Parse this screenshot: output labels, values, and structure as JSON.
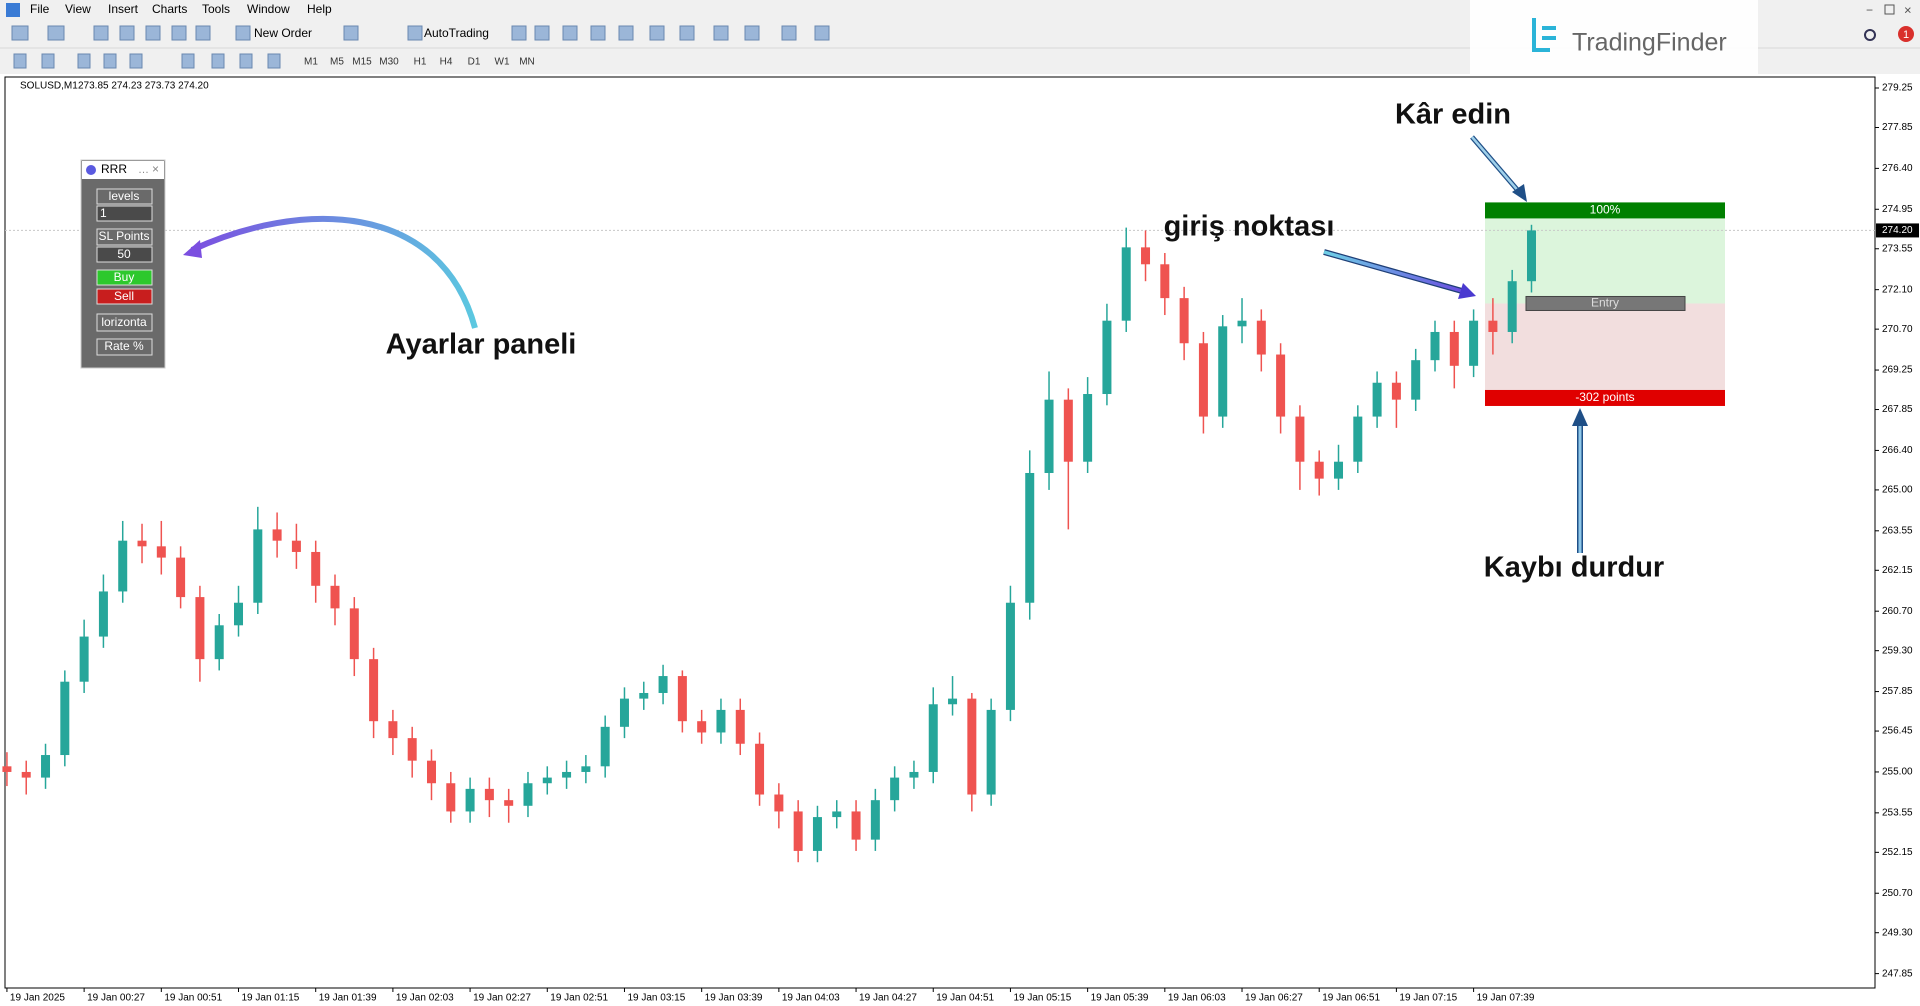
{
  "menu": [
    "File",
    "View",
    "Insert",
    "Charts",
    "Tools",
    "Window",
    "Help"
  ],
  "toolbar": {
    "new_order": "New Order",
    "autotrading": "AutoTrading"
  },
  "timeframes": [
    "M1",
    "M5",
    "M15",
    "M30",
    "H1",
    "H4",
    "D1",
    "W1",
    "MN"
  ],
  "logo": "TradingFinder",
  "notification": "1",
  "chart_data": {
    "type": "candlestick",
    "symbol": "SOLUSD,M1",
    "quote": "273.85 274.23 273.73 274.20",
    "up_color": "#26a69a",
    "down_color": "#ef5350",
    "open": [
      255.2,
      255.0,
      254.8,
      255.6,
      258.2,
      259.8,
      261.4,
      263.2,
      263.0,
      262.6,
      261.2,
      259.0,
      260.2,
      261.0,
      263.6,
      263.2,
      262.8,
      261.6,
      260.8,
      259.0,
      256.8,
      256.2,
      255.4,
      254.6,
      253.6,
      254.4,
      254.0,
      253.8,
      254.6,
      254.8,
      255.0,
      255.2,
      256.6,
      257.6,
      257.8,
      258.4,
      256.8,
      256.4,
      257.2,
      256.0,
      254.2,
      253.6,
      252.2,
      253.4,
      253.6,
      252.6,
      254.0,
      254.8,
      255.0,
      257.4,
      257.6,
      254.2,
      257.2,
      261.0,
      265.6,
      268.2,
      266.0,
      268.4,
      271.0,
      273.6,
      273.0,
      271.8,
      270.2,
      267.6,
      270.8,
      271.0,
      269.8,
      267.6,
      266.0,
      265.4,
      266.0,
      267.6,
      268.8,
      268.2,
      269.6,
      270.6,
      269.4,
      271.0,
      270.6,
      272.4
    ],
    "high": [
      255.7,
      255.4,
      256.0,
      258.6,
      260.4,
      262.0,
      263.9,
      263.8,
      263.9,
      263.0,
      261.6,
      260.6,
      261.6,
      264.4,
      264.2,
      263.8,
      263.2,
      262.0,
      261.2,
      259.4,
      257.2,
      256.6,
      255.8,
      255.0,
      254.8,
      254.8,
      254.4,
      255.0,
      255.2,
      255.4,
      255.6,
      257.0,
      258.0,
      258.2,
      258.8,
      258.6,
      257.2,
      257.6,
      257.6,
      256.4,
      254.6,
      254.0,
      253.8,
      254.0,
      254.0,
      254.4,
      255.2,
      255.4,
      258.0,
      258.4,
      257.8,
      257.6,
      261.6,
      266.4,
      269.2,
      268.6,
      269.0,
      271.6,
      274.3,
      274.2,
      273.4,
      272.2,
      270.6,
      271.2,
      271.8,
      271.4,
      270.2,
      268.0,
      266.4,
      266.6,
      268.0,
      269.2,
      269.2,
      270.0,
      271.0,
      271.0,
      271.4,
      271.8,
      272.8,
      274.4
    ],
    "low": [
      254.5,
      254.2,
      254.4,
      255.2,
      257.8,
      259.4,
      261.0,
      262.4,
      262.0,
      260.8,
      258.2,
      258.6,
      259.8,
      260.6,
      262.6,
      262.2,
      261.0,
      260.2,
      258.4,
      256.2,
      255.6,
      254.8,
      254.0,
      253.2,
      253.2,
      253.4,
      253.2,
      253.4,
      254.2,
      254.4,
      254.6,
      254.8,
      256.2,
      257.2,
      257.4,
      256.4,
      256.0,
      256.0,
      255.6,
      253.8,
      253.0,
      251.8,
      251.8,
      253.0,
      252.2,
      252.2,
      253.6,
      254.4,
      254.6,
      257.0,
      253.6,
      253.8,
      256.8,
      260.4,
      265.0,
      263.6,
      265.6,
      268.0,
      270.6,
      272.4,
      271.2,
      269.6,
      267.0,
      267.2,
      270.2,
      269.2,
      267.0,
      265.0,
      264.8,
      265.0,
      265.6,
      267.2,
      267.2,
      267.8,
      269.2,
      268.6,
      269.0,
      269.8,
      270.2,
      272.0
    ],
    "close": [
      255.0,
      254.8,
      255.6,
      258.2,
      259.8,
      261.4,
      263.2,
      263.0,
      262.6,
      261.2,
      259.0,
      260.2,
      261.0,
      263.6,
      263.2,
      262.8,
      261.6,
      260.8,
      259.0,
      256.8,
      256.2,
      255.4,
      254.6,
      253.6,
      254.4,
      254.0,
      253.8,
      254.6,
      254.8,
      255.0,
      255.2,
      256.6,
      257.6,
      257.8,
      258.4,
      256.8,
      256.4,
      257.2,
      256.0,
      254.2,
      253.6,
      252.2,
      253.4,
      253.6,
      252.6,
      254.0,
      254.8,
      255.0,
      257.4,
      257.6,
      254.2,
      257.2,
      261.0,
      265.6,
      268.2,
      266.0,
      268.4,
      271.0,
      273.6,
      273.0,
      271.8,
      270.2,
      267.6,
      270.8,
      271.0,
      269.8,
      267.6,
      266.0,
      265.4,
      266.0,
      267.6,
      268.8,
      268.2,
      269.6,
      270.6,
      269.4,
      271.0,
      270.6,
      272.4,
      274.2
    ],
    "xlim": [
      -0.1,
      96.8
    ],
    "xticks": [
      {
        "value": 0,
        "label": "19 Jan 2025"
      },
      {
        "value": 4,
        "label": "19 Jan 00:27"
      },
      {
        "value": 8,
        "label": "19 Jan 00:51"
      },
      {
        "value": 12,
        "label": "19 Jan 01:15"
      },
      {
        "value": 16,
        "label": "19 Jan 01:39"
      },
      {
        "value": 20,
        "label": "19 Jan 02:03"
      },
      {
        "value": 24,
        "label": "19 Jan 02:27"
      },
      {
        "value": 28,
        "label": "19 Jan 02:51"
      },
      {
        "value": 32,
        "label": "19 Jan 03:15"
      },
      {
        "value": 36,
        "label": "19 Jan 03:39"
      },
      {
        "value": 40,
        "label": "19 Jan 04:03"
      },
      {
        "value": 44,
        "label": "19 Jan 04:27"
      },
      {
        "value": 48,
        "label": "19 Jan 04:51"
      },
      {
        "value": 52,
        "label": "19 Jan 05:15"
      },
      {
        "value": 56,
        "label": "19 Jan 05:39"
      },
      {
        "value": 60,
        "label": "19 Jan 06:03"
      },
      {
        "value": 64,
        "label": "19 Jan 06:27"
      },
      {
        "value": 68,
        "label": "19 Jan 06:51"
      },
      {
        "value": 72,
        "label": "19 Jan 07:15"
      },
      {
        "value": 76,
        "label": "19 Jan 07:39"
      }
    ],
    "ylim": [
      247.34,
      279.64
    ],
    "yticks": [
      279.25,
      277.85,
      {
        "value": 276.4,
        "label": "276.40"
      },
      274.95,
      273.55,
      {
        "value": 272.1,
        "label": "272.10"
      },
      {
        "value": 270.7,
        "label": "270.70"
      },
      269.25,
      267.85,
      {
        "value": 266.4,
        "label": "266.40"
      },
      {
        "value": 265,
        "label": "265.00"
      },
      263.55,
      262.15,
      {
        "value": 260.7,
        "label": "260.70"
      },
      {
        "value": 259.3,
        "label": "259.30"
      },
      257.85,
      256.45,
      {
        "value": 255,
        "label": "255.00"
      },
      253.55,
      252.15,
      {
        "value": 250.7,
        "label": "250.70"
      },
      {
        "value": 249.3,
        "label": "249.30"
      },
      247.85
    ],
    "last": {
      "value": 274.2,
      "label": "274.20"
    },
    "position": {
      "tp": 274.91,
      "entry": 271.61,
      "sl": 268.26,
      "tp_label": "100%",
      "entry_label": "Entry",
      "sl_label": "-302 points"
    }
  },
  "panel": {
    "title": "RRR",
    "levels_label": "levels",
    "levels": "1",
    "sl_label": "SL Points",
    "sl": "50",
    "buy": "Buy",
    "sell": "Sell",
    "horizontal": "lorizonta",
    "rate": "Rate %"
  },
  "annotations": {
    "take_profit": "Kâr edin",
    "entry": "giriş noktası",
    "panel": "Ayarlar paneli",
    "stop_loss": "Kaybı durdur"
  }
}
